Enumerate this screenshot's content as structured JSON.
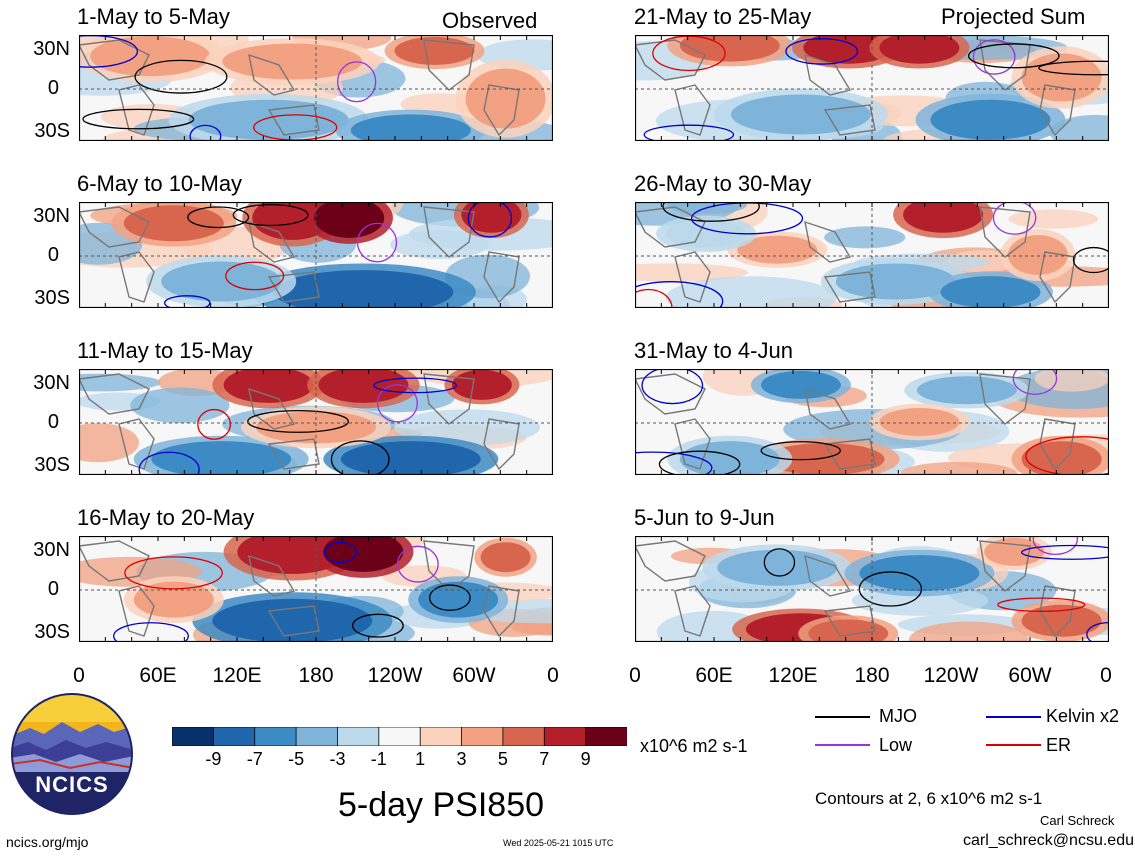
{
  "header": {
    "left_label": "Observed",
    "right_label": "Projected Sum"
  },
  "panels": [
    {
      "title": "1-May to 5-May"
    },
    {
      "title": "6-May to 10-May"
    },
    {
      "title": "11-May to 15-May"
    },
    {
      "title": "16-May to 20-May"
    },
    {
      "title": "21-May to 25-May"
    },
    {
      "title": "26-May to 30-May"
    },
    {
      "title": "31-May to 4-Jun"
    },
    {
      "title": "5-Jun to 9-Jun"
    }
  ],
  "lat_labels": [
    "30N",
    "0",
    "30S"
  ],
  "lon_labels": [
    "0",
    "60E",
    "120E",
    "180",
    "120W",
    "60W",
    "0"
  ],
  "colorbar": {
    "labels": [
      "-9",
      "-7",
      "-5",
      "-3",
      "-1",
      "1",
      "3",
      "5",
      "7",
      "9"
    ],
    "units": "x10^6 m2 s-1",
    "colors": [
      "#08306b",
      "#1f66ad",
      "#3d8bc4",
      "#7fb4da",
      "#bcd9ec",
      "#f7f7f7",
      "#fbd2bc",
      "#f2a282",
      "#d8664f",
      "#b3202b",
      "#6b0018"
    ]
  },
  "legend": {
    "items": [
      {
        "label": "MJO",
        "color": "#000000"
      },
      {
        "label": "Kelvin x2",
        "color": "#0000cc"
      },
      {
        "label": "Low",
        "color": "#9933dd"
      },
      {
        "label": "ER",
        "color": "#dd0000"
      }
    ],
    "contours_note": "Contours at 2, 6 x10^6 m2 s-1"
  },
  "title": "5-day PSI850",
  "logo": {
    "text": "NCICS"
  },
  "footer": {
    "url": "ncics.org/mjo",
    "timestamp": "Wed 2025-05-21 1015 UTC",
    "author": "Carl Schreck",
    "email": "carl_schreck@ncsu.edu"
  }
}
